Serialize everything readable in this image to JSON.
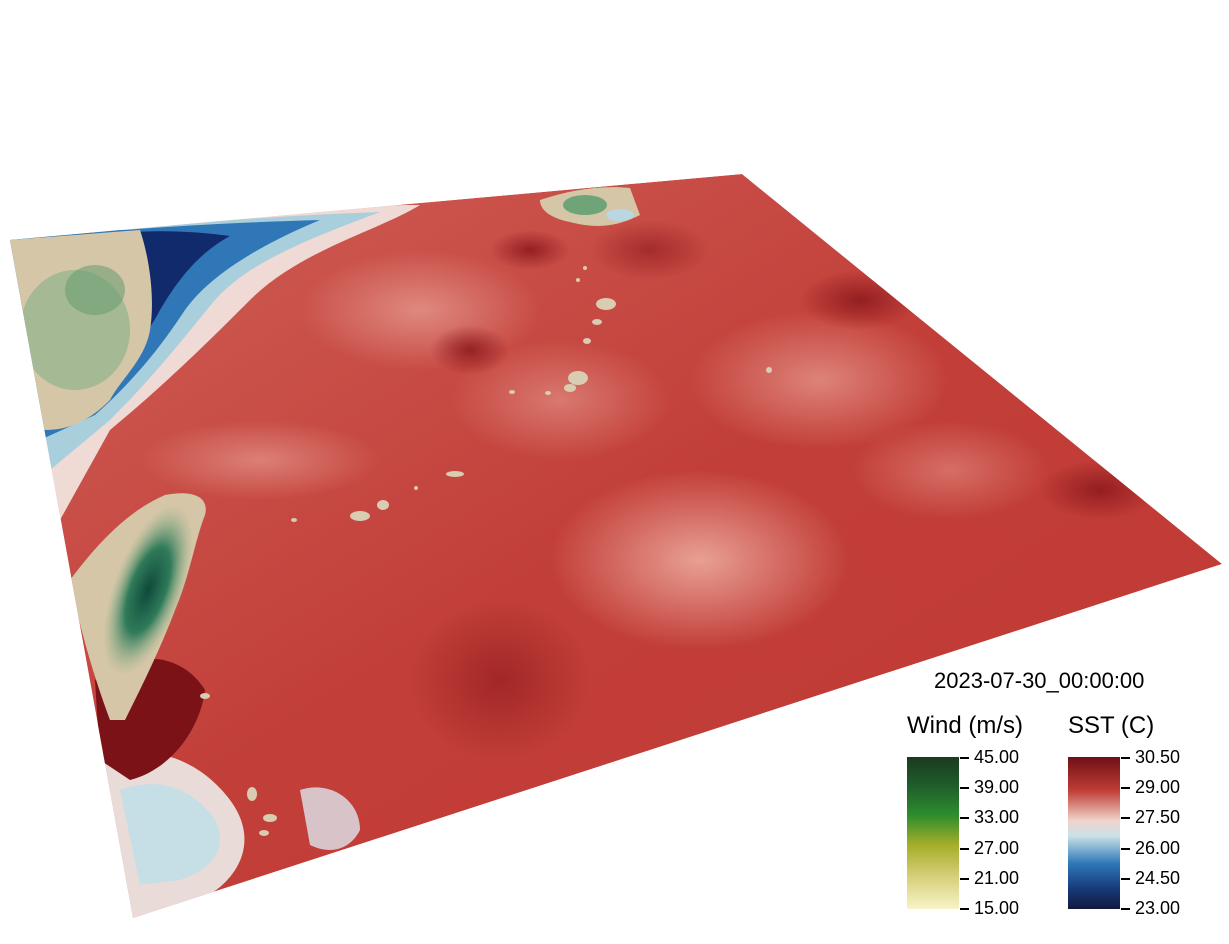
{
  "timestamp": "2023-07-30_00:00:00",
  "legends": {
    "wind": {
      "title": "Wind (m/s)",
      "ticks": [
        "45.00",
        "39.00",
        "33.00",
        "27.00",
        "21.00",
        "15.00"
      ],
      "colors": [
        "#1c3a1e",
        "#1f5e2c",
        "#2d8a2e",
        "#a7b02d",
        "#d7d07a",
        "#f5f2c3"
      ]
    },
    "sst": {
      "title": "SST (C)",
      "ticks": [
        "30.50",
        "29.00",
        "27.50",
        "26.00",
        "24.50",
        "23.00"
      ],
      "colors": [
        "#7a1418",
        "#c9463f",
        "#f2e0da",
        "#a9d0dc",
        "#1f5fa8",
        "#151c4a"
      ]
    }
  }
}
